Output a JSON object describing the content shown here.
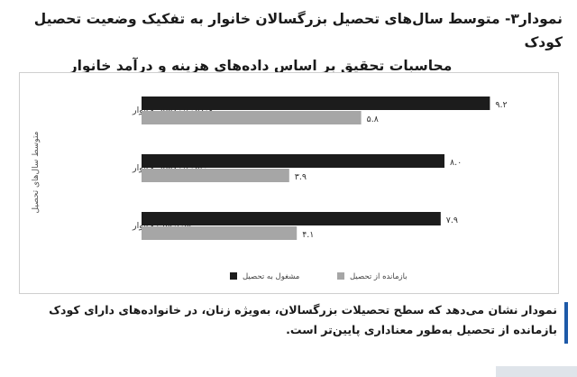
{
  "title": {
    "line1": "نمودار۳- متوسط سال‌های تحصیل بزرگسالان خانوار به تفکیک وضعیت تحصیل کودک",
    "line2": "محاسبات تحقیق بر اساس داده‌های هزینه و درآمد خانوار"
  },
  "footnote": {
    "text": "نمودار نشان می‌دهد که سطح تحصیلات بزرگسالان، به‌ویژه زنان، در خانواده‌های دارای کودک بازمانده از تحصیل به‌طور معناداری پایین‌تر است."
  },
  "colors": {
    "enrolled": "#1c1c1c",
    "dropout": "#a6a6a6",
    "accent": "#1e5aa8"
  },
  "chart_data": {
    "type": "bar",
    "orientation": "horizontal",
    "categories": [
      "مردان بزرگسال خانوار",
      "زنان بزرگسال خانوار",
      "سرپرست خانوار"
    ],
    "series": [
      {
        "name": "مشغول به تحصیل",
        "values": [
          9.2,
          8.0,
          7.9
        ],
        "labels": [
          "۹.۲",
          "۸.۰",
          "۷.۹"
        ],
        "color": "#1c1c1c"
      },
      {
        "name": "بازمانده از تحصیل",
        "values": [
          5.8,
          3.9,
          4.1
        ],
        "labels": [
          "۵.۸",
          "۳.۹",
          "۴.۱"
        ],
        "color": "#a6a6a6"
      }
    ],
    "ylabel": "متوسط سال‌های تحصیل",
    "xlim": [
      0,
      10
    ],
    "grid": false,
    "legend": "bottom"
  }
}
